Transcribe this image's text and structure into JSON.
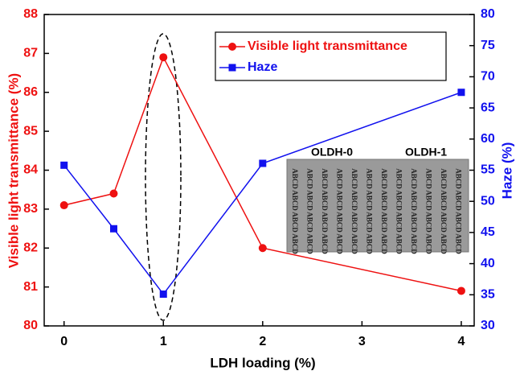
{
  "chart_data": {
    "type": "line",
    "x_label": "LDH loading (%)",
    "y_label": "Visible light transmittance (%)",
    "y2_label": "Haze (%)",
    "xlim": [
      -0.2,
      4.13
    ],
    "xticks": [
      0,
      1,
      2,
      3,
      4
    ],
    "ylim": [
      80,
      88
    ],
    "yticks": [
      80,
      81,
      82,
      83,
      84,
      85,
      86,
      87,
      88
    ],
    "y2lim": [
      30,
      80
    ],
    "y2ticks": [
      30,
      35,
      40,
      45,
      50,
      55,
      60,
      65,
      70,
      75,
      80
    ],
    "x": [
      0,
      0.5,
      1,
      2,
      4
    ],
    "series": [
      {
        "name": "Visible light transmittance",
        "color": "#ee1111",
        "marker": "circle",
        "values": [
          83.1,
          83.4,
          86.9,
          82.0,
          80.9
        ]
      },
      {
        "name": "Haze",
        "color": "#1111ee",
        "marker": "square",
        "axis": "y2",
        "values": [
          55.8,
          45.6,
          35.1,
          56.1,
          67.5
        ]
      }
    ],
    "inset_labels": [
      "OLDH-0",
      "OLDH-1"
    ],
    "inset_text": "ABCD"
  }
}
